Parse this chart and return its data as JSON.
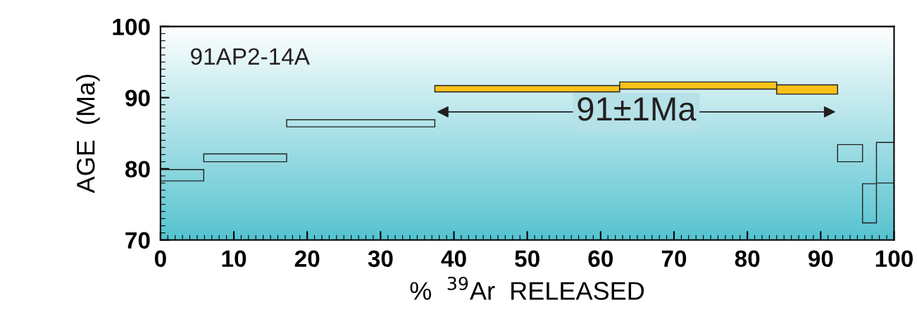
{
  "chart_data": {
    "type": "histogram",
    "xlabel": "%  $^{39}$Ar  RELEASED",
    "ylabel": "AGE  (Ma)",
    "bins": [
      0,
      5.9,
      17.2,
      37.4,
      62.6,
      84.0,
      92.3,
      95.7,
      97.6,
      100
    ],
    "base": [
      78.3,
      81.0,
      85.9,
      90.8,
      91.2,
      90.5,
      81.0,
      72.4,
      78.0
    ],
    "values": [
      1.6,
      1.1,
      1.0,
      0.9,
      1.0,
      1.3,
      2.4,
      5.5,
      5.7
    ],
    "colors": [
      "none",
      "none",
      "none",
      "#f9c21b",
      "#f9c21b",
      "#f9c21b",
      "none",
      "none",
      "none"
    ],
    "xlim": [
      0,
      100
    ],
    "ylim": [
      70,
      100
    ],
    "xticks": [
      0,
      10,
      20,
      30,
      40,
      50,
      60,
      70,
      80,
      90,
      100
    ],
    "yticks": [
      70,
      80,
      90,
      100
    ],
    "annotations": [
      "91AP2-14A",
      "91±1Ma"
    ],
    "grid": false,
    "legend": false
  }
}
